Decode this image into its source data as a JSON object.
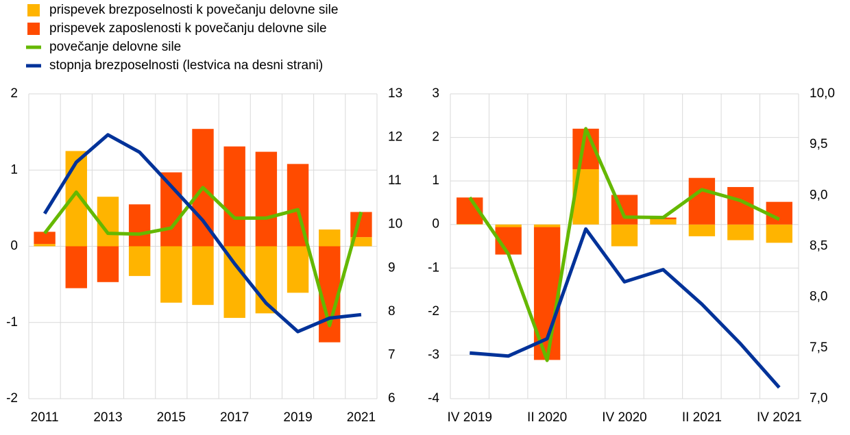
{
  "chart_data": [
    {
      "type": "bar",
      "categories": [
        "2011",
        null,
        "2013",
        null,
        "2015",
        null,
        "2017",
        null,
        "2019",
        null,
        "2021"
      ],
      "ylim": [
        -2,
        2
      ],
      "yticks": [
        -2,
        -1,
        0,
        1,
        2
      ],
      "y2lim": [
        6,
        13
      ],
      "y2ticks": [
        6,
        7,
        8,
        9,
        10,
        11,
        12,
        13
      ],
      "grid": true,
      "series": [
        {
          "name": "prispevek brezposelnosti k povečanju delovne sile",
          "type": "bar",
          "color": "#ffb400",
          "values": [
            0.03,
            1.25,
            0.65,
            -0.39,
            -0.74,
            -0.77,
            -0.94,
            -0.88,
            -0.61,
            0.22,
            0.12
          ]
        },
        {
          "name": "prispevek zaposlenosti k povečanju delovne sile",
          "type": "bar",
          "color": "#ff4b00",
          "values": [
            0.16,
            -0.55,
            -0.47,
            0.55,
            0.97,
            1.54,
            1.31,
            1.24,
            1.08,
            -1.26,
            0.33
          ]
        },
        {
          "name": "povečanje delovne sile",
          "type": "line",
          "color": "#65b800",
          "values": [
            0.17,
            0.71,
            0.17,
            0.16,
            0.24,
            0.77,
            0.37,
            0.37,
            0.48,
            -1.04,
            0.45
          ]
        },
        {
          "name": "stopnja brezposelnosti (lestvica na desni strani)",
          "type": "line",
          "axis": "y2",
          "color": "#003299",
          "values": [
            10.25,
            11.43,
            12.06,
            11.66,
            10.88,
            10.09,
            9.1,
            8.19,
            7.54,
            7.85,
            7.93
          ]
        }
      ]
    },
    {
      "type": "bar",
      "categories": [
        "IV 2019",
        null,
        "II 2020",
        null,
        "IV 2020",
        null,
        "II 2021",
        null,
        "IV 2021"
      ],
      "ylim": [
        -4,
        3
      ],
      "yticks": [
        -4,
        -3,
        -2,
        -1,
        0,
        1,
        2,
        3
      ],
      "y2lim": [
        7,
        10
      ],
      "y2ticks": [
        {
          "value": 7,
          "label": "7,0"
        },
        {
          "value": 7.5,
          "label": "7,5"
        },
        {
          "value": 8,
          "label": "8,0"
        },
        {
          "value": 8.5,
          "label": "8,5"
        },
        {
          "value": 9,
          "label": "9,0"
        },
        {
          "value": 9.5,
          "label": "9,5"
        },
        {
          "value": 10,
          "label": "10,0"
        }
      ],
      "grid": true,
      "series": [
        {
          "type": "bar",
          "color": "#ffb400",
          "values": [
            0.01,
            -0.06,
            -0.06,
            1.27,
            -0.5,
            0.12,
            -0.27,
            -0.36,
            -0.42
          ]
        },
        {
          "type": "bar",
          "color": "#ff4b00",
          "values": [
            0.61,
            -0.63,
            -3.05,
            0.93,
            0.68,
            0.04,
            1.07,
            0.86,
            0.52
          ]
        },
        {
          "type": "line",
          "color": "#65b800",
          "values": [
            0.62,
            -0.68,
            -3.12,
            2.2,
            0.17,
            0.16,
            0.8,
            0.55,
            0.12
          ]
        },
        {
          "type": "line",
          "axis": "y2",
          "color": "#003299",
          "values": [
            7.45,
            7.42,
            7.59,
            8.67,
            8.15,
            8.27,
            7.93,
            7.54,
            7.11
          ]
        }
      ]
    }
  ]
}
